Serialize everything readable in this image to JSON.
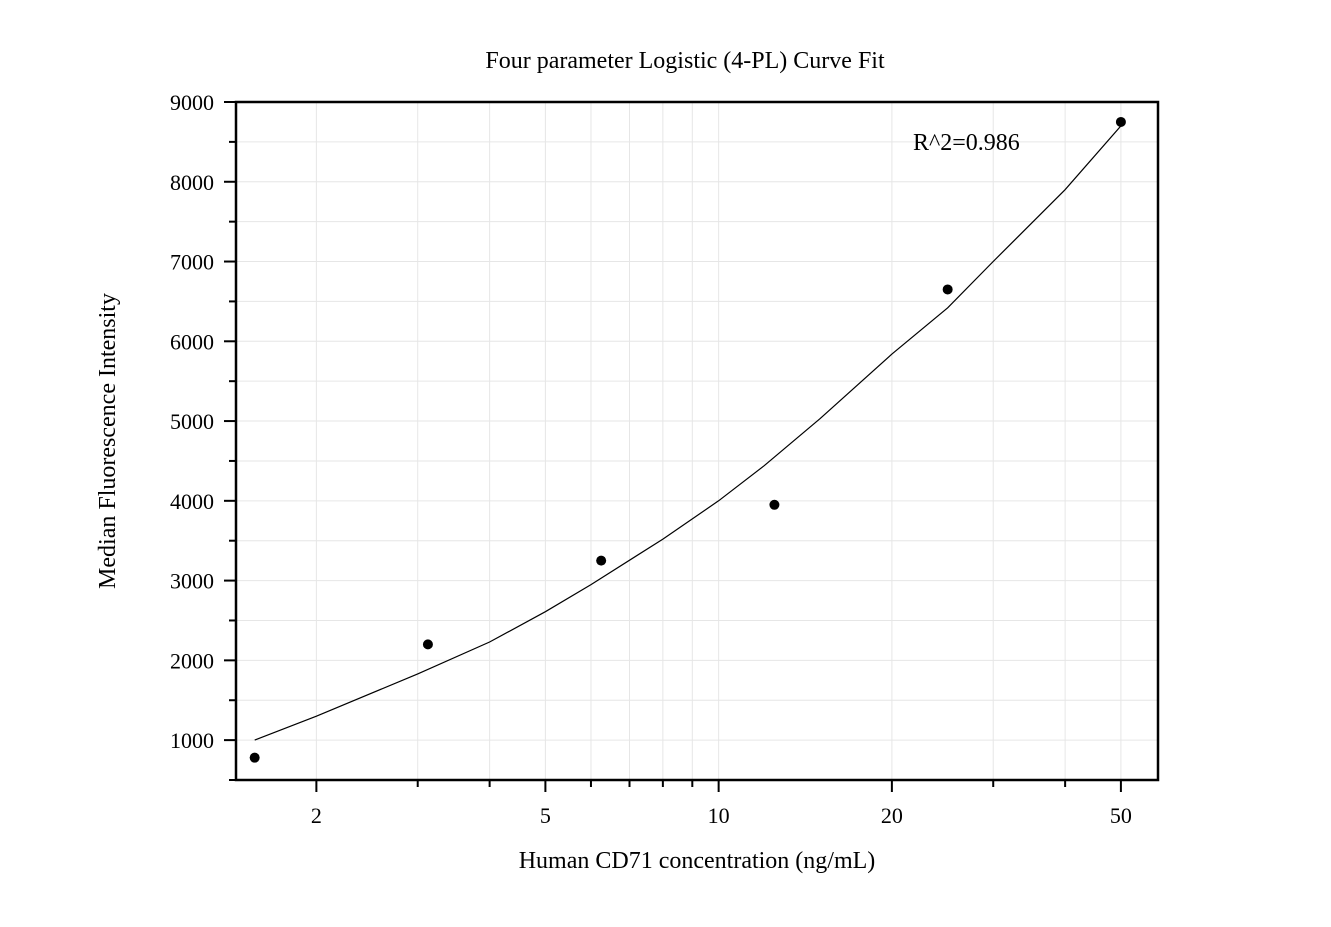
{
  "chart_data": {
    "type": "scatter",
    "title": "Four parameter Logistic (4-PL) Curve Fit",
    "xlabel": "Human CD71 concentration (ng/mL)",
    "ylabel": "Median Fluorescence Intensity",
    "x_scale": "log",
    "xlim": [
      1.45,
      58
    ],
    "ylim": [
      500,
      9000
    ],
    "x_ticks": [
      2,
      5,
      10,
      20,
      50
    ],
    "y_ticks": [
      1000,
      2000,
      3000,
      4000,
      5000,
      6000,
      7000,
      8000,
      9000
    ],
    "grid": true,
    "points": {
      "x": [
        1.5625,
        3.125,
        6.25,
        12.5,
        25,
        50
      ],
      "y": [
        780,
        2200,
        3250,
        3950,
        6650,
        8750
      ]
    },
    "fit_curve": {
      "model": "4-PL",
      "x": [
        1.5625,
        2,
        3,
        4,
        5,
        6,
        8,
        10,
        12,
        15,
        20,
        25,
        30,
        40,
        50
      ],
      "y": [
        1000,
        1300,
        1830,
        2230,
        2610,
        2950,
        3520,
        4000,
        4440,
        5030,
        5840,
        6420,
        7000,
        7900,
        8700
      ]
    },
    "annotation": "R^2=0.986",
    "colors": {
      "points": "#000000",
      "curve": "#000000",
      "grid": "#e6e6e6",
      "axes": "#000000"
    }
  }
}
